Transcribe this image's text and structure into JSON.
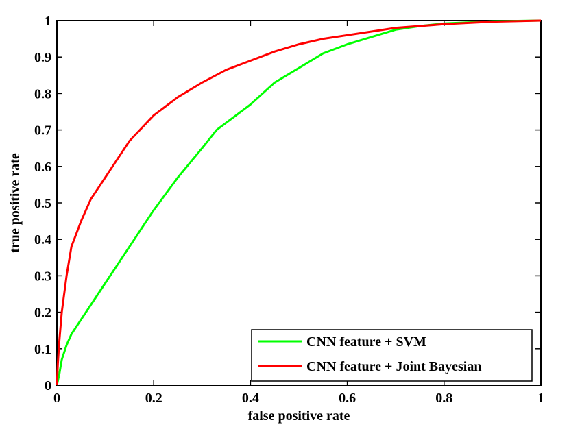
{
  "chart_data": {
    "type": "line",
    "title": "",
    "xlabel": "false positive rate",
    "ylabel": "true positive rate",
    "xlim": [
      0,
      1
    ],
    "ylim": [
      0,
      1
    ],
    "xticks": [
      "0",
      "0.2",
      "0.4",
      "0.6",
      "0.8",
      "1"
    ],
    "yticks": [
      "0",
      "0.1",
      "0.2",
      "0.3",
      "0.4",
      "0.5",
      "0.6",
      "0.7",
      "0.8",
      "0.9",
      "1"
    ],
    "grid": false,
    "legend_position": "bottom-right",
    "series": [
      {
        "name": "CNN feature + SVM",
        "color": "#00ff00",
        "x": [
          0,
          0.005,
          0.01,
          0.02,
          0.03,
          0.05,
          0.07,
          0.1,
          0.15,
          0.2,
          0.25,
          0.3,
          0.33,
          0.4,
          0.45,
          0.5,
          0.55,
          0.6,
          0.65,
          0.7,
          0.75,
          0.8,
          0.9,
          1.0
        ],
        "y": [
          0,
          0.03,
          0.07,
          0.11,
          0.14,
          0.18,
          0.22,
          0.28,
          0.38,
          0.48,
          0.57,
          0.65,
          0.7,
          0.77,
          0.83,
          0.87,
          0.91,
          0.935,
          0.955,
          0.975,
          0.985,
          0.992,
          0.998,
          1.0
        ]
      },
      {
        "name": "CNN feature + Joint Bayesian",
        "color": "#ff0000",
        "x": [
          0,
          0.002,
          0.005,
          0.01,
          0.02,
          0.03,
          0.05,
          0.07,
          0.1,
          0.15,
          0.2,
          0.25,
          0.3,
          0.35,
          0.4,
          0.45,
          0.5,
          0.55,
          0.6,
          0.65,
          0.7,
          0.8,
          0.9,
          1.0
        ],
        "y": [
          0,
          0.06,
          0.12,
          0.2,
          0.3,
          0.38,
          0.45,
          0.51,
          0.57,
          0.67,
          0.74,
          0.79,
          0.83,
          0.865,
          0.89,
          0.915,
          0.935,
          0.95,
          0.96,
          0.97,
          0.98,
          0.99,
          0.997,
          1.0
        ]
      }
    ]
  }
}
